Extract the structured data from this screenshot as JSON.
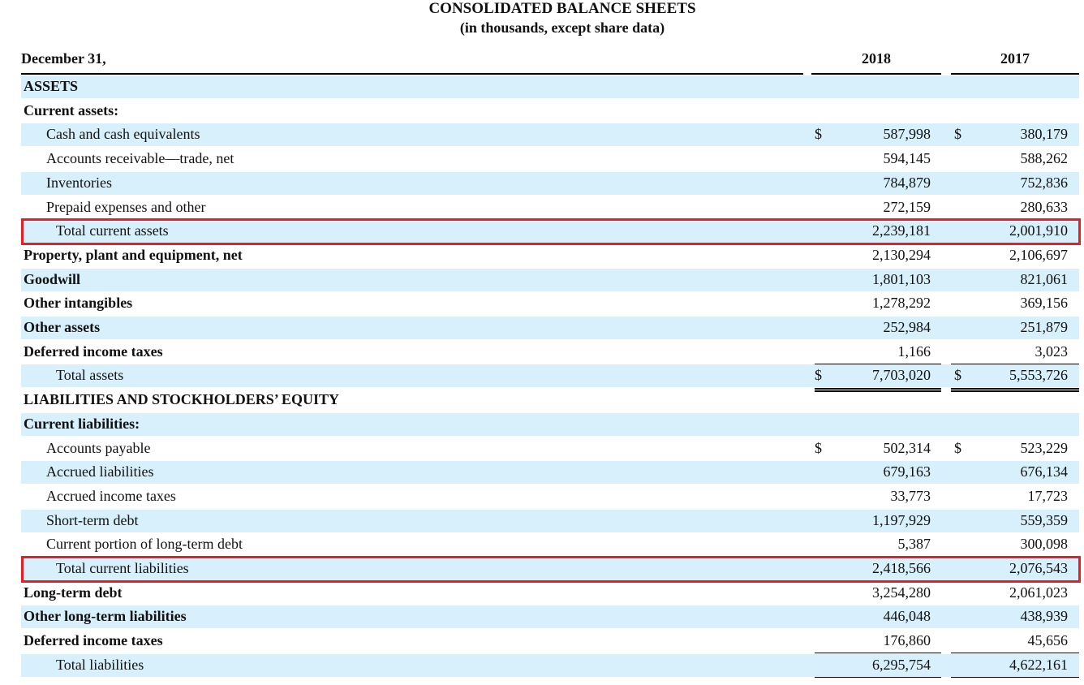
{
  "header": {
    "title": "CONSOLIDATED BALANCE SHEETS",
    "subtitle": "(in thousands, except share data)"
  },
  "columns": {
    "label": "December 31,",
    "year1": "2018",
    "year2": "2017"
  },
  "rows": [
    {
      "label": "ASSETS",
      "style": "bold",
      "indent": 0,
      "shade": true
    },
    {
      "label": "Current assets:",
      "style": "bold",
      "indent": 0,
      "shade": false
    },
    {
      "label": "Cash and cash equivalents",
      "style": "normal",
      "indent": 1,
      "shade": true,
      "cur1": "$",
      "v1": "587,998",
      "cur2": "$",
      "v2": "380,179"
    },
    {
      "label": "Accounts receivable—trade, net",
      "style": "normal",
      "indent": 1,
      "shade": false,
      "v1": "594,145",
      "v2": "588,262"
    },
    {
      "label": "Inventories",
      "style": "normal",
      "indent": 1,
      "shade": true,
      "v1": "784,879",
      "v2": "752,836"
    },
    {
      "label": "Prepaid expenses and other",
      "style": "normal",
      "indent": 1,
      "shade": false,
      "v1": "272,159",
      "v2": "280,633",
      "underline": true
    },
    {
      "label": "Total current assets",
      "style": "normal",
      "indent": 2,
      "shade": true,
      "v1": "2,239,181",
      "v2": "2,001,910",
      "highlight": true
    },
    {
      "label": "Property, plant and equipment, net",
      "style": "bold",
      "indent": 0,
      "shade": false,
      "v1": "2,130,294",
      "v2": "2,106,697"
    },
    {
      "label": "Goodwill",
      "style": "bold",
      "indent": 0,
      "shade": true,
      "v1": "1,801,103",
      "v2": "821,061"
    },
    {
      "label": "Other intangibles",
      "style": "bold",
      "indent": 0,
      "shade": false,
      "v1": "1,278,292",
      "v2": "369,156"
    },
    {
      "label": "Other assets",
      "style": "bold",
      "indent": 0,
      "shade": true,
      "v1": "252,984",
      "v2": "251,879"
    },
    {
      "label": "Deferred income taxes",
      "style": "bold",
      "indent": 0,
      "shade": false,
      "v1": "1,166",
      "v2": "3,023",
      "underline": true
    },
    {
      "label": "Total assets",
      "style": "normal",
      "indent": 2,
      "shade": true,
      "cur1": "$",
      "v1": "7,703,020",
      "cur2": "$",
      "v2": "5,553,726",
      "double": true
    },
    {
      "label": "LIABILITIES AND STOCKHOLDERS’ EQUITY",
      "style": "bold",
      "indent": 0,
      "shade": false
    },
    {
      "label": "Current liabilities:",
      "style": "bold",
      "indent": 0,
      "shade": true
    },
    {
      "label": "Accounts payable",
      "style": "normal",
      "indent": 1,
      "shade": false,
      "cur1": "$",
      "v1": "502,314",
      "cur2": "$",
      "v2": "523,229"
    },
    {
      "label": "Accrued liabilities",
      "style": "normal",
      "indent": 1,
      "shade": true,
      "v1": "679,163",
      "v2": "676,134"
    },
    {
      "label": "Accrued income taxes",
      "style": "normal",
      "indent": 1,
      "shade": false,
      "v1": "33,773",
      "v2": "17,723"
    },
    {
      "label": "Short-term debt",
      "style": "normal",
      "indent": 1,
      "shade": true,
      "v1": "1,197,929",
      "v2": "559,359"
    },
    {
      "label": "Current portion of long-term debt",
      "style": "normal",
      "indent": 1,
      "shade": false,
      "v1": "5,387",
      "v2": "300,098",
      "underline": true
    },
    {
      "label": "Total current liabilities",
      "style": "normal",
      "indent": 2,
      "shade": true,
      "v1": "2,418,566",
      "v2": "2,076,543",
      "highlight": true
    },
    {
      "label": "Long-term debt",
      "style": "bold",
      "indent": 0,
      "shade": false,
      "v1": "3,254,280",
      "v2": "2,061,023"
    },
    {
      "label": "Other long-term liabilities",
      "style": "bold",
      "indent": 0,
      "shade": true,
      "v1": "446,048",
      "v2": "438,939"
    },
    {
      "label": "Deferred income taxes",
      "style": "bold",
      "indent": 0,
      "shade": false,
      "v1": "176,860",
      "v2": "45,656",
      "underline": true
    },
    {
      "label": "Total liabilities",
      "style": "normal",
      "indent": 2,
      "shade": true,
      "v1": "6,295,754",
      "v2": "4,622,161",
      "underline": true
    }
  ],
  "colors": {
    "shade": "#d7f0fb",
    "highlight": "#e32028"
  }
}
